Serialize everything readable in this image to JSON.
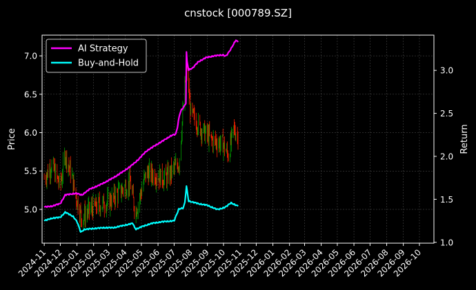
{
  "chart_data": {
    "type": "line",
    "title": "cnstock [000789.SZ]",
    "ylabel": "Price",
    "y2label": "Return",
    "ylim": [
      4.56,
      7.27
    ],
    "y2lim": [
      0.99,
      3.41
    ],
    "yticks": [
      "5.0",
      "5.5",
      "6.0",
      "6.5",
      "7.0"
    ],
    "y2ticks": [
      "1.0",
      "1.5",
      "2.0",
      "2.5",
      "3.0"
    ],
    "xticks": [
      "2024-11",
      "2024-12",
      "2025-01",
      "2025-02",
      "2025-03",
      "2025-04",
      "2025-05",
      "2025-06",
      "2025-07",
      "2025-08",
      "2025-09",
      "2025-10",
      "2025-11",
      "2025-12",
      "2026-01",
      "2026-02",
      "2026-03",
      "2026-04",
      "2026-05",
      "2026-06",
      "2026-07",
      "2026-08",
      "2026-09",
      "2026-10"
    ],
    "xlim": [
      "2024-10-28",
      "2026-10-28"
    ],
    "grid": true,
    "legend_position": "top-left",
    "colors": {
      "background": "#000000",
      "ai_strategy": "#ff00ff",
      "buy_and_hold": "#00ffff",
      "candle_up": "#00a000",
      "candle_down": "#ff2200",
      "grid": "#555555",
      "axes": "#ffffff"
    },
    "series": [
      {
        "name": "AI Strategy",
        "axis": "right",
        "points": [
          [
            "2024-11-01",
            1.41
          ],
          [
            "2024-11-15",
            1.42
          ],
          [
            "2024-12-01",
            1.45
          ],
          [
            "2024-12-10",
            1.55
          ],
          [
            "2024-12-30",
            1.57
          ],
          [
            "2025-01-10",
            1.55
          ],
          [
            "2025-01-25",
            1.62
          ],
          [
            "2025-02-10",
            1.66
          ],
          [
            "2025-03-01",
            1.72
          ],
          [
            "2025-03-20",
            1.79
          ],
          [
            "2025-04-10",
            1.88
          ],
          [
            "2025-04-25",
            1.96
          ],
          [
            "2025-05-10",
            2.06
          ],
          [
            "2025-05-25",
            2.12
          ],
          [
            "2025-06-10",
            2.18
          ],
          [
            "2025-06-25",
            2.24
          ],
          [
            "2025-07-05",
            2.26
          ],
          [
            "2025-07-12",
            2.52
          ],
          [
            "2025-07-20",
            2.58
          ],
          [
            "2025-07-23",
            2.62
          ],
          [
            "2025-07-24",
            3.21
          ],
          [
            "2025-07-26",
            3.0
          ],
          [
            "2025-08-05",
            3.03
          ],
          [
            "2025-08-15",
            3.1
          ],
          [
            "2025-08-30",
            3.15
          ],
          [
            "2025-09-15",
            3.17
          ],
          [
            "2025-09-30",
            3.18
          ],
          [
            "2025-10-05",
            3.16
          ],
          [
            "2025-10-12",
            3.22
          ],
          [
            "2025-10-20",
            3.31
          ],
          [
            "2025-10-24",
            3.35
          ],
          [
            "2025-10-28",
            3.33
          ]
        ]
      },
      {
        "name": "Buy-and-Hold",
        "axis": "right",
        "points": [
          [
            "2024-11-01",
            1.25
          ],
          [
            "2024-11-15",
            1.28
          ],
          [
            "2024-12-01",
            1.29
          ],
          [
            "2024-12-10",
            1.35
          ],
          [
            "2024-12-25",
            1.3
          ],
          [
            "2025-01-01",
            1.24
          ],
          [
            "2025-01-08",
            1.12
          ],
          [
            "2025-01-15",
            1.15
          ],
          [
            "2025-02-01",
            1.16
          ],
          [
            "2025-02-20",
            1.17
          ],
          [
            "2025-03-10",
            1.17
          ],
          [
            "2025-04-01",
            1.2
          ],
          [
            "2025-04-15",
            1.22
          ],
          [
            "2025-04-20",
            1.15
          ],
          [
            "2025-05-01",
            1.18
          ],
          [
            "2025-05-20",
            1.22
          ],
          [
            "2025-06-10",
            1.24
          ],
          [
            "2025-07-01",
            1.25
          ],
          [
            "2025-07-10",
            1.39
          ],
          [
            "2025-07-20",
            1.4
          ],
          [
            "2025-07-24",
            1.65
          ],
          [
            "2025-07-28",
            1.48
          ],
          [
            "2025-08-15",
            1.45
          ],
          [
            "2025-09-01",
            1.43
          ],
          [
            "2025-09-20",
            1.38
          ],
          [
            "2025-10-05",
            1.41
          ],
          [
            "2025-10-15",
            1.46
          ],
          [
            "2025-10-28",
            1.42
          ]
        ]
      },
      {
        "name": "Price",
        "axis": "left",
        "style": "candles",
        "points": [
          [
            "2024-11-01",
            5.4
          ],
          [
            "2024-11-15",
            5.58
          ],
          [
            "2024-12-01",
            5.3
          ],
          [
            "2024-12-10",
            5.72
          ],
          [
            "2024-12-20",
            5.5
          ],
          [
            "2025-01-01",
            5.12
          ],
          [
            "2025-01-10",
            4.88
          ],
          [
            "2025-01-25",
            5.0
          ],
          [
            "2025-02-10",
            5.05
          ],
          [
            "2025-03-01",
            5.1
          ],
          [
            "2025-03-20",
            5.22
          ],
          [
            "2025-04-10",
            5.35
          ],
          [
            "2025-04-20",
            4.95
          ],
          [
            "2025-05-10",
            5.48
          ],
          [
            "2025-05-25",
            5.45
          ],
          [
            "2025-06-15",
            5.4
          ],
          [
            "2025-07-10",
            5.6
          ],
          [
            "2025-07-24",
            6.85
          ],
          [
            "2025-08-01",
            6.25
          ],
          [
            "2025-08-20",
            6.05
          ],
          [
            "2025-09-10",
            5.9
          ],
          [
            "2025-09-30",
            5.85
          ],
          [
            "2025-10-10",
            5.7
          ],
          [
            "2025-10-20",
            6.05
          ],
          [
            "2025-10-28",
            5.95
          ]
        ]
      }
    ]
  }
}
